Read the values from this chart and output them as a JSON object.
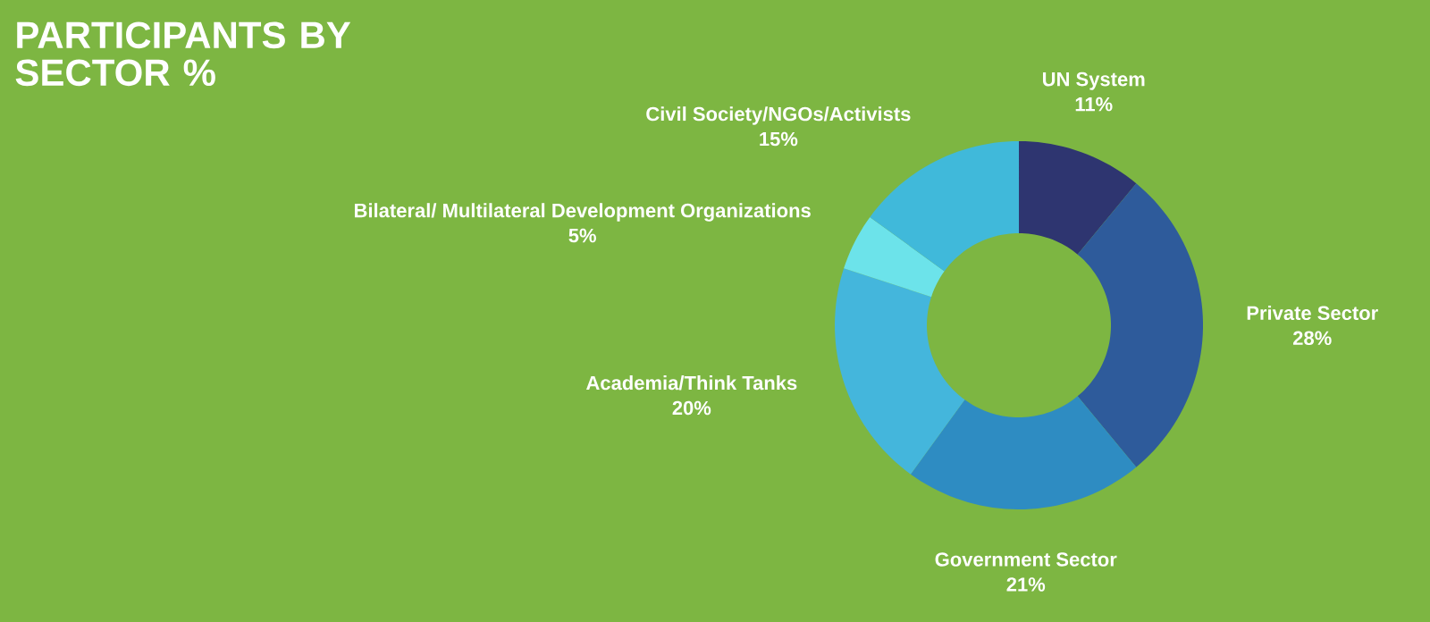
{
  "chart_data": {
    "type": "donut",
    "title": "PARTICIPANTS BY SECTOR %",
    "categories": [
      "UN System",
      "Private Sector",
      "Government Sector",
      "Academia/Think Tanks",
      "Bilateral/ Multilateral Development Organizations",
      "Civil Society/NGOs/Activists"
    ],
    "values": [
      11,
      28,
      21,
      20,
      5,
      15
    ],
    "value_labels": [
      "11%",
      "28%",
      "21%",
      "20%",
      "5%",
      "15%"
    ],
    "colors": [
      "#2e3570",
      "#2e5b9b",
      "#2e8cc2",
      "#44b6dc",
      "#6ce3ea",
      "#40b9da"
    ]
  }
}
